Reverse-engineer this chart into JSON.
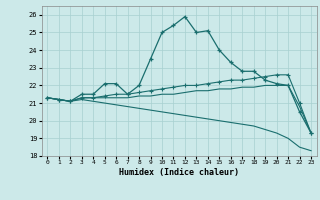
{
  "xlabel": "Humidex (Indice chaleur)",
  "bg_color": "#cce9e9",
  "grid_color": "#a8d0d0",
  "line_color": "#1a6e6e",
  "xlim": [
    -0.5,
    23.5
  ],
  "ylim": [
    18,
    26.5
  ],
  "yticks": [
    18,
    19,
    20,
    21,
    22,
    23,
    24,
    25,
    26
  ],
  "xticks": [
    0,
    1,
    2,
    3,
    4,
    5,
    6,
    7,
    8,
    9,
    10,
    11,
    12,
    13,
    14,
    15,
    16,
    17,
    18,
    19,
    20,
    21,
    22,
    23
  ],
  "line1_x": [
    0,
    1,
    2,
    3,
    4,
    5,
    6,
    7,
    8,
    9,
    10,
    11,
    12,
    13,
    14,
    15,
    16,
    17,
    18,
    19,
    20,
    21,
    22,
    23
  ],
  "line1_y": [
    21.3,
    21.2,
    21.1,
    21.5,
    21.5,
    22.1,
    22.1,
    21.5,
    22.0,
    23.5,
    25.0,
    25.4,
    25.9,
    25.0,
    25.1,
    24.0,
    23.3,
    22.8,
    22.8,
    22.3,
    22.1,
    22.0,
    20.5,
    19.3
  ],
  "line2_x": [
    0,
    1,
    2,
    3,
    4,
    5,
    6,
    7,
    8,
    9,
    10,
    11,
    12,
    13,
    14,
    15,
    16,
    17,
    18,
    19,
    20,
    21,
    22,
    23
  ],
  "line2_y": [
    21.3,
    21.2,
    21.1,
    21.3,
    21.3,
    21.4,
    21.5,
    21.5,
    21.6,
    21.7,
    21.8,
    21.9,
    22.0,
    22.0,
    22.1,
    22.2,
    22.3,
    22.3,
    22.4,
    22.5,
    22.6,
    22.6,
    21.0,
    19.3
  ],
  "line3_x": [
    0,
    1,
    2,
    3,
    4,
    5,
    6,
    7,
    8,
    9,
    10,
    11,
    12,
    13,
    14,
    15,
    16,
    17,
    18,
    19,
    20,
    21,
    22,
    23
  ],
  "line3_y": [
    21.3,
    21.2,
    21.1,
    21.3,
    21.3,
    21.3,
    21.3,
    21.3,
    21.4,
    21.4,
    21.5,
    21.5,
    21.6,
    21.7,
    21.7,
    21.8,
    21.8,
    21.9,
    21.9,
    22.0,
    22.0,
    22.0,
    20.8,
    19.3
  ],
  "line4_x": [
    0,
    1,
    2,
    3,
    4,
    5,
    6,
    7,
    8,
    9,
    10,
    11,
    12,
    13,
    14,
    15,
    16,
    17,
    18,
    19,
    20,
    21,
    22,
    23
  ],
  "line4_y": [
    21.3,
    21.2,
    21.1,
    21.2,
    21.1,
    21.0,
    20.9,
    20.8,
    20.7,
    20.6,
    20.5,
    20.4,
    20.3,
    20.2,
    20.1,
    20.0,
    19.9,
    19.8,
    19.7,
    19.5,
    19.3,
    19.0,
    18.5,
    18.3
  ]
}
